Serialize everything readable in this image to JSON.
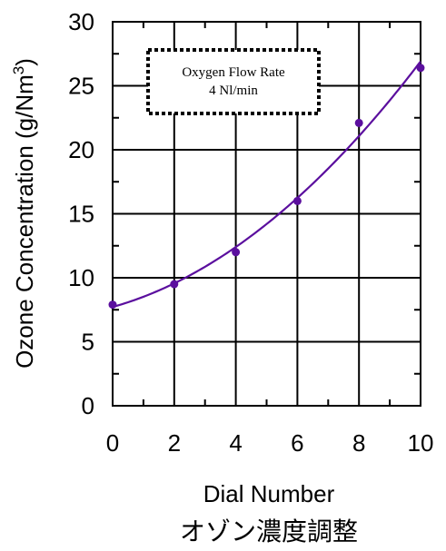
{
  "chart_data": {
    "type": "scatter",
    "title": "",
    "xlabel": "Dial Number",
    "ylabel": "Ozone Concentration (g/Nm",
    "ylabel_superscript": "3",
    "ylabel_close": ")",
    "subtitle": "オゾン濃度調整",
    "xlim": [
      0,
      10
    ],
    "ylim": [
      0,
      30
    ],
    "x_ticks": [
      "0",
      "2",
      "4",
      "6",
      "8",
      "10"
    ],
    "y_ticks": [
      "0",
      "5",
      "10",
      "15",
      "20",
      "25",
      "30"
    ],
    "grid": true,
    "x": [
      0,
      2,
      4,
      6,
      8,
      10
    ],
    "y": [
      7.9,
      9.5,
      12.0,
      16.0,
      22.1,
      26.4
    ],
    "trendline": {
      "type": "polynomial",
      "degree": 2
    },
    "annotation": {
      "line1": "Oxygen Flow Rate",
      "line2": "4 Nl/min"
    },
    "colors": {
      "series": "#5B0F9E",
      "grid": "#000000"
    }
  }
}
